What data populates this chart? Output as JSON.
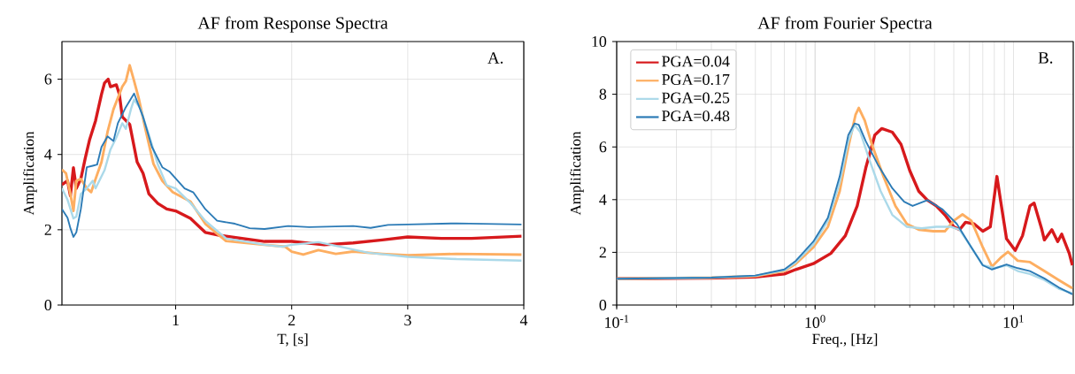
{
  "chart_data": [
    {
      "type": "line",
      "title": "AF from Response Spectra",
      "xlabel": "T, [s]",
      "ylabel": "Amplification",
      "xlim": [
        0.02,
        4
      ],
      "ylim": [
        0,
        7
      ],
      "xticks": [
        1,
        2,
        3,
        4
      ],
      "yticks": [
        0,
        2,
        4,
        6
      ],
      "grid": true,
      "annotations": [
        "A."
      ],
      "series": [
        {
          "color": "#d7191c",
          "x": [
            0.02,
            0.068,
            0.093,
            0.119,
            0.144,
            0.183,
            0.221,
            0.259,
            0.31,
            0.361,
            0.387,
            0.418,
            0.438,
            0.489,
            0.515,
            0.54,
            0.604,
            0.668,
            0.719,
            0.77,
            0.847,
            0.923,
            1.0,
            1.128,
            1.255,
            1.383,
            1.766,
            2.0,
            2.28,
            2.53,
            2.78,
            3.0,
            3.29,
            3.55,
            3.98
          ],
          "values": [
            3.2,
            3.3,
            2.9,
            3.65,
            3.1,
            3.35,
            3.9,
            4.4,
            4.9,
            5.6,
            5.9,
            6.0,
            5.8,
            5.85,
            5.6,
            5.0,
            4.8,
            3.8,
            3.5,
            2.95,
            2.7,
            2.55,
            2.5,
            2.3,
            1.93,
            1.85,
            1.69,
            1.69,
            1.6,
            1.65,
            1.73,
            1.81,
            1.77,
            1.77,
            1.83
          ]
        },
        {
          "color": "#fdae61",
          "x": [
            0.02,
            0.055,
            0.093,
            0.119,
            0.144,
            0.183,
            0.234,
            0.272,
            0.31,
            0.361,
            0.413,
            0.464,
            0.54,
            0.571,
            0.604,
            0.642,
            0.681,
            0.745,
            0.809,
            0.885,
            0.974,
            1.128,
            1.255,
            1.434,
            1.766,
            1.944,
            2.0,
            2.1,
            2.23,
            2.38,
            2.53,
            2.78,
            3.0,
            3.42,
            3.98
          ],
          "values": [
            3.6,
            3.5,
            2.95,
            2.5,
            3.3,
            3.35,
            3.1,
            3.0,
            3.35,
            3.8,
            4.6,
            5.2,
            5.8,
            5.95,
            6.37,
            5.95,
            5.5,
            4.6,
            3.75,
            3.3,
            3.0,
            2.75,
            2.16,
            1.7,
            1.6,
            1.55,
            1.42,
            1.34,
            1.46,
            1.36,
            1.42,
            1.36,
            1.32,
            1.36,
            1.34
          ]
        },
        {
          "color": "#abd9e9",
          "x": [
            0.02,
            0.068,
            0.119,
            0.144,
            0.183,
            0.234,
            0.285,
            0.31,
            0.387,
            0.438,
            0.489,
            0.54,
            0.571,
            0.617,
            0.642,
            0.694,
            0.77,
            0.847,
            0.923,
            1.0,
            1.128,
            1.255,
            1.434,
            1.766,
            1.92,
            2.0,
            2.23,
            2.43,
            2.66,
            3.0,
            3.42,
            3.98
          ],
          "values": [
            3.1,
            2.8,
            2.3,
            2.35,
            2.95,
            3.1,
            3.3,
            3.1,
            3.58,
            4.13,
            4.45,
            4.83,
            4.68,
            5.23,
            5.46,
            5.23,
            4.52,
            3.73,
            3.18,
            3.1,
            2.71,
            2.24,
            1.77,
            1.6,
            1.55,
            1.6,
            1.67,
            1.54,
            1.39,
            1.28,
            1.22,
            1.18
          ]
        },
        {
          "color": "#2c7bb6",
          "x": [
            0.02,
            0.068,
            0.093,
            0.119,
            0.144,
            0.183,
            0.234,
            0.285,
            0.323,
            0.361,
            0.413,
            0.464,
            0.502,
            0.566,
            0.642,
            0.719,
            0.796,
            0.885,
            0.949,
            1.077,
            1.153,
            1.255,
            1.357,
            1.511,
            1.638,
            1.766,
            1.97,
            2.15,
            2.53,
            2.68,
            2.83,
            3.0,
            3.42,
            3.98
          ],
          "values": [
            2.55,
            2.32,
            2.04,
            1.81,
            1.93,
            2.55,
            3.66,
            3.7,
            3.73,
            4.2,
            4.48,
            4.36,
            4.83,
            5.23,
            5.62,
            5.0,
            4.2,
            3.66,
            3.54,
            3.1,
            2.99,
            2.55,
            2.24,
            2.16,
            2.04,
            2.02,
            2.1,
            2.07,
            2.1,
            2.05,
            2.13,
            2.14,
            2.17,
            2.14
          ]
        }
      ]
    },
    {
      "type": "line",
      "title": "AF from Fourier Spectra",
      "xlabel": "Freq., [Hz]",
      "ylabel": "Amplification",
      "log": "x",
      "xlim": [
        0.1,
        20
      ],
      "ylim": [
        0,
        10
      ],
      "xticks": [
        {
          "value": 0.1,
          "label": "10$^{-1}$"
        },
        {
          "value": 1,
          "label": "10$^{0}$"
        },
        {
          "value": 10,
          "label": "10$^{1}$"
        }
      ],
      "yticks": [
        0,
        2,
        4,
        6,
        8,
        10
      ],
      "grid": true,
      "legend": "top left",
      "annotations": [
        "B."
      ],
      "series": [
        {
          "name": "PGA=0.04",
          "color": "#d7191c",
          "x": [
            0.1,
            0.3,
            0.5,
            0.7,
            0.8,
            0.98,
            1.2,
            1.42,
            1.63,
            1.8,
            2.0,
            2.17,
            2.45,
            2.71,
            3.0,
            3.33,
            3.68,
            4.08,
            4.51,
            5.0,
            5.35,
            5.73,
            6.33,
            7.0,
            7.64,
            8.25,
            8.6,
            9.22,
            10.2,
            11.1,
            12.1,
            12.7,
            13.9,
            14.3,
            15.6,
            16.7,
            17.5,
            19.1,
            19.8
          ],
          "values": [
            1.0,
            1.02,
            1.06,
            1.18,
            1.35,
            1.57,
            1.96,
            2.63,
            3.76,
            5.2,
            6.45,
            6.7,
            6.56,
            6.1,
            5.1,
            4.32,
            3.98,
            3.76,
            3.42,
            2.97,
            2.86,
            3.14,
            3.08,
            2.8,
            2.97,
            4.88,
            3.98,
            2.52,
            2.07,
            2.63,
            3.76,
            3.87,
            2.86,
            2.47,
            2.86,
            2.41,
            2.69,
            1.96,
            1.51
          ]
        },
        {
          "name": "PGA=0.17",
          "color": "#fdae61",
          "x": [
            0.1,
            0.3,
            0.5,
            0.7,
            0.8,
            0.98,
            1.16,
            1.33,
            1.47,
            1.6,
            1.66,
            1.78,
            1.93,
            2.21,
            2.54,
            2.9,
            3.33,
            3.94,
            4.51,
            5.0,
            5.53,
            6.13,
            7.0,
            7.79,
            8.6,
            9.37,
            10.5,
            12.1,
            14.3,
            16.9,
            19.8
          ],
          "values": [
            1.0,
            1.04,
            1.1,
            1.29,
            1.57,
            2.19,
            2.97,
            4.32,
            6.0,
            7.23,
            7.48,
            7.0,
            6.11,
            4.88,
            3.76,
            3.08,
            2.86,
            2.8,
            2.8,
            3.2,
            3.44,
            3.2,
            2.19,
            1.46,
            1.79,
            2.02,
            1.68,
            1.63,
            1.29,
            0.95,
            0.64
          ]
        },
        {
          "name": "PGA=0.25",
          "color": "#abd9e9",
          "x": [
            0.1,
            0.3,
            0.5,
            0.7,
            0.8,
            0.98,
            1.16,
            1.33,
            1.47,
            1.58,
            1.69,
            1.87,
            2.14,
            2.45,
            2.9,
            3.44,
            4.08,
            4.84,
            5.35,
            6.13,
            7.0,
            8.04,
            9.22,
            10.5,
            12.1,
            14.3,
            16.9,
            19.8
          ],
          "values": [
            1.0,
            1.04,
            1.11,
            1.32,
            1.63,
            2.3,
            3.2,
            4.65,
            6.22,
            6.84,
            6.56,
            5.55,
            4.32,
            3.42,
            2.97,
            2.91,
            2.97,
            2.97,
            2.86,
            2.19,
            1.51,
            1.4,
            1.51,
            1.29,
            1.18,
            0.95,
            0.62,
            0.45
          ]
        },
        {
          "name": "PGA=0.48",
          "color": "#2c7bb6",
          "x": [
            0.1,
            0.3,
            0.5,
            0.7,
            0.8,
            0.98,
            1.16,
            1.33,
            1.47,
            1.58,
            1.66,
            1.8,
            2.07,
            2.45,
            2.81,
            3.1,
            3.68,
            4.37,
            5.18,
            6.13,
            7.0,
            7.79,
            9.22,
            10.5,
            12.1,
            14.3,
            16.9,
            19.8
          ],
          "values": [
            1.0,
            1.04,
            1.12,
            1.35,
            1.68,
            2.41,
            3.31,
            4.88,
            6.45,
            6.89,
            6.84,
            6.22,
            5.33,
            4.43,
            3.92,
            3.76,
            3.98,
            3.64,
            3.08,
            2.19,
            1.51,
            1.35,
            1.54,
            1.4,
            1.29,
            1.01,
            0.67,
            0.41
          ]
        }
      ]
    }
  ]
}
